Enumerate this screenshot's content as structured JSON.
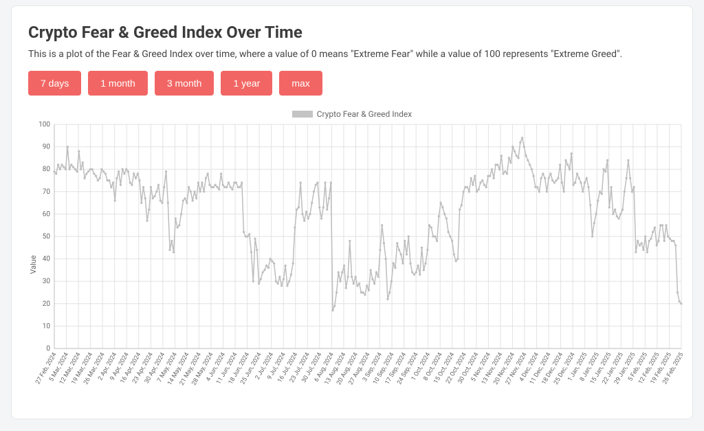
{
  "card": {
    "title": "Crypto Fear & Greed Index Over Time",
    "subtitle": "This is a plot of the Fear & Greed Index over time, where a value of 0 means \"Extreme Fear\" while a value of 100 represents \"Extreme Greed\"."
  },
  "buttons": [
    {
      "label": "7 days"
    },
    {
      "label": "1 month"
    },
    {
      "label": "3 month"
    },
    {
      "label": "1 year"
    },
    {
      "label": "max"
    }
  ],
  "chart": {
    "type": "line",
    "legend_label": "Crypto Fear & Greed Index",
    "y_axis_label": "Value",
    "background_color": "#ffffff",
    "grid_color": "#e2e2e2",
    "axis_color": "#bdbdbd",
    "series_color": "#bdbdbd",
    "button_color": "#f16664",
    "line_width": 1.5,
    "marker_radius": 1.6,
    "ylim": [
      0,
      100
    ],
    "ytick_step": 10,
    "y_ticks": [
      0,
      10,
      20,
      30,
      40,
      50,
      60,
      70,
      80,
      90,
      100
    ],
    "x_ticks": [
      "27 Feb, 2024",
      "5 Mar, 2024",
      "12 Mar, 2024",
      "19 Mar, 2024",
      "26 Mar, 2024",
      "2 Apr, 2024",
      "9 Apr, 2024",
      "16 Apr, 2024",
      "23 Apr, 2024",
      "30 Apr, 2024",
      "7 May, 2024",
      "14 May, 2024",
      "21 May, 2024",
      "28 May, 2024",
      "4 Jun, 2024",
      "11 Jun, 2024",
      "18 Jun, 2024",
      "25 Jun, 2024",
      "2 Jul, 2024",
      "9 Jul, 2024",
      "16 Jul, 2024",
      "23 Jul, 2024",
      "30 Jul, 2024",
      "6 Aug, 2024",
      "13 Aug, 2024",
      "20 Aug, 2024",
      "27 Aug, 2024",
      "3 Sep, 2024",
      "10 Sep, 2024",
      "17 Sep, 2024",
      "24 Sep, 2024",
      "1 Oct, 2024",
      "8 Oct, 2024",
      "15 Oct, 2024",
      "22 Oct, 2024",
      "30 Oct, 2024",
      "5 Nov, 2024",
      "13 Nov, 2024",
      "20 Nov, 2024",
      "27 Nov, 2024",
      "4 Dec, 2024",
      "11 Dec, 2024",
      "18 Dec, 2024",
      "25 Dec, 2024",
      "1 Jan, 2025",
      "8 Jan, 2025",
      "15 Jan, 2025",
      "22 Jan, 2025",
      "29 Jan, 2025",
      "5 Feb, 2025",
      "12 Feb, 2025",
      "19 Feb, 2025",
      "26 Feb, 2025"
    ],
    "values": [
      79,
      78,
      82,
      80,
      82,
      81,
      80,
      90,
      80,
      82,
      81,
      80,
      79,
      88,
      80,
      83,
      76,
      78,
      79,
      80,
      80,
      78,
      77,
      75,
      76,
      80,
      79,
      78,
      75,
      75,
      72,
      74,
      66,
      76,
      79,
      73,
      80,
      78,
      80,
      79,
      74,
      73,
      78,
      76,
      78,
      75,
      65,
      72,
      67,
      57,
      62,
      72,
      67,
      68,
      70,
      73,
      66,
      65,
      72,
      79,
      65,
      44,
      48,
      43,
      58,
      54,
      55,
      60,
      66,
      67,
      65,
      72,
      70,
      66,
      70,
      67,
      74,
      70,
      74,
      70,
      76,
      78,
      73,
      72,
      72,
      73,
      72,
      71,
      78,
      73,
      72,
      72,
      74,
      72,
      71,
      74,
      74,
      72,
      72,
      74,
      52,
      50,
      50,
      51,
      43,
      30,
      49,
      44,
      29,
      31,
      34,
      35,
      37,
      36,
      40,
      39,
      38,
      30,
      29,
      32,
      28,
      31,
      37,
      28,
      30,
      33,
      38,
      54,
      62,
      63,
      74,
      60,
      57,
      61,
      58,
      60,
      65,
      70,
      73,
      74,
      63,
      58,
      63,
      74,
      62,
      67,
      74,
      17,
      19,
      25,
      34,
      30,
      34,
      37,
      27,
      32,
      48,
      32,
      29,
      32,
      28,
      29,
      25,
      25,
      24,
      28,
      26,
      35,
      31,
      29,
      34,
      32,
      44,
      55,
      47,
      40,
      22,
      25,
      30,
      38,
      36,
      47,
      44,
      42,
      38,
      48,
      42,
      50,
      38,
      34,
      33,
      34,
      37,
      33,
      45,
      35,
      38,
      44,
      55,
      54,
      50,
      50,
      48,
      59,
      65,
      63,
      60,
      58,
      52,
      50,
      48,
      42,
      39,
      40,
      62,
      64,
      70,
      72,
      72,
      70,
      76,
      73,
      77,
      70,
      71,
      74,
      75,
      73,
      72,
      77,
      77,
      80,
      76,
      82,
      82,
      80,
      86,
      78,
      79,
      78,
      85,
      83,
      90,
      88,
      86,
      85,
      92,
      94,
      90,
      86,
      84,
      82,
      80,
      77,
      72,
      72,
      70,
      76,
      78,
      76,
      70,
      76,
      78,
      75,
      74,
      75,
      76,
      82,
      74,
      70,
      84,
      82,
      80,
      87,
      73,
      74,
      78,
      76,
      74,
      70,
      74,
      76,
      72,
      64,
      50,
      56,
      60,
      66,
      70,
      69,
      80,
      79,
      84,
      63,
      72,
      60,
      62,
      59,
      58,
      60,
      62,
      70,
      76,
      84,
      76,
      70,
      72,
      43,
      48,
      46,
      47,
      44,
      50,
      43,
      48,
      49,
      52,
      54,
      46,
      48,
      55,
      55,
      48,
      55,
      50,
      49,
      48,
      48,
      46,
      25,
      21,
      20
    ],
    "title_fontsize": 24,
    "subtitle_fontsize": 14,
    "tick_fontsize": 10
  }
}
